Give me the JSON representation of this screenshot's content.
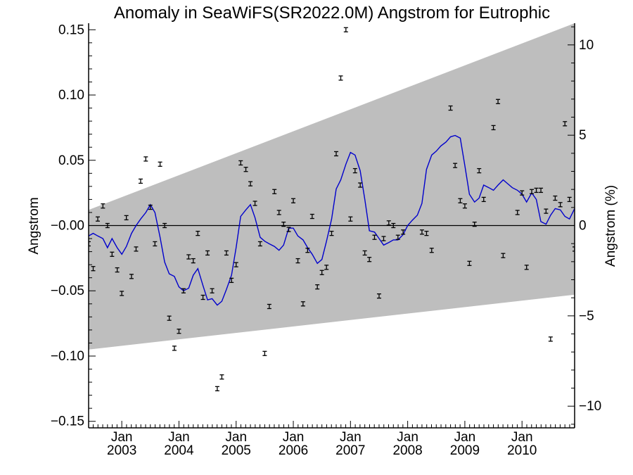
{
  "chart_data": {
    "type": "scatter",
    "title": "Anomaly in SeaWiFS(SR2022.0M) Angstrom for Eutrophic",
    "ylabel": "Angstrom",
    "y2label": "Angstrom (%)",
    "xlabel": "",
    "xlim": [
      2002.42,
      2010.92
    ],
    "ylim": [
      -0.155,
      0.155
    ],
    "y2lim": [
      -11.2,
      11.2
    ],
    "y_ticks": [
      -0.15,
      -0.1,
      -0.05,
      0.0,
      0.05,
      0.1,
      0.15
    ],
    "y_tick_labels": [
      "−0.15",
      "−0.10",
      "−0.05",
      "−0.00",
      "0.05",
      "0.10",
      "0.15"
    ],
    "y2_ticks": [
      -10,
      -5,
      0,
      5,
      10
    ],
    "y2_tick_labels": [
      "−10",
      "−5",
      "0",
      "5",
      "10"
    ],
    "x_ticks": [
      {
        "x": 2003.0,
        "label1": "Jan",
        "label2": "2003"
      },
      {
        "x": 2004.0,
        "label1": "Jan",
        "label2": "2004"
      },
      {
        "x": 2005.0,
        "label1": "Jan",
        "label2": "2005"
      },
      {
        "x": 2006.0,
        "label1": "Jan",
        "label2": "2006"
      },
      {
        "x": 2007.0,
        "label1": "Jan",
        "label2": "2007"
      },
      {
        "x": 2008.0,
        "label1": "Jan",
        "label2": "2008"
      },
      {
        "x": 2009.0,
        "label1": "Jan",
        "label2": "2009"
      },
      {
        "x": 2010.0,
        "label1": "Jan",
        "label2": "2010"
      }
    ],
    "band": {
      "left": [
        2002.42,
        -0.095,
        0.012
      ],
      "right": [
        2010.92,
        -0.053,
        0.155
      ],
      "color": "#bebebe"
    },
    "zero_line": 0.0,
    "monthly_points": {
      "x": [
        2002.42,
        2002.5,
        2002.58,
        2002.67,
        2002.75,
        2002.83,
        2002.92,
        2003.0,
        2003.08,
        2003.17,
        2003.25,
        2003.33,
        2003.42,
        2003.5,
        2003.58,
        2003.67,
        2003.75,
        2003.83,
        2003.92,
        2004.0,
        2004.08,
        2004.17,
        2004.25,
        2004.33,
        2004.42,
        2004.5,
        2004.58,
        2004.67,
        2004.75,
        2004.83,
        2004.92,
        2005.0,
        2005.08,
        2005.17,
        2005.25,
        2005.33,
        2005.42,
        2005.5,
        2005.58,
        2005.67,
        2005.75,
        2005.83,
        2005.92,
        2006.0,
        2006.08,
        2006.17,
        2006.25,
        2006.33,
        2006.42,
        2006.5,
        2006.58,
        2006.67,
        2006.75,
        2006.83,
        2006.92,
        2007.0,
        2007.08,
        2007.17,
        2007.25,
        2007.33,
        2007.42,
        2007.5,
        2007.58,
        2007.67,
        2007.75,
        2007.83,
        2007.92,
        2008.25,
        2008.33,
        2008.42,
        2008.75,
        2008.83,
        2008.92,
        2009.0,
        2009.08,
        2009.17,
        2009.25,
        2009.33,
        2009.5,
        2009.58,
        2009.67,
        2009.92,
        2010.0,
        2010.08,
        2010.17,
        2010.25,
        2010.33,
        2010.42,
        2010.5,
        2010.58,
        2010.67,
        2010.75,
        2010.83,
        2010.92
      ],
      "y": [
        -0.014,
        -0.033,
        0.005,
        0.015,
        0.0,
        -0.022,
        -0.034,
        -0.052,
        0.006,
        -0.039,
        -0.018,
        0.034,
        0.051,
        0.014,
        -0.014,
        0.047,
        0.0,
        -0.071,
        -0.094,
        -0.081,
        -0.05,
        -0.024,
        -0.027,
        -0.006,
        -0.055,
        -0.021,
        -0.05,
        -0.125,
        -0.116,
        -0.021,
        -0.042,
        -0.03,
        0.048,
        0.043,
        0.032,
        0.017,
        -0.014,
        -0.098,
        -0.062,
        0.026,
        0.01,
        0.001,
        -0.003,
        0.019,
        -0.027,
        -0.06,
        -0.019,
        0.007,
        -0.047,
        -0.036,
        -0.032,
        -0.006,
        0.055,
        0.113,
        0.15,
        0.005,
        0.042,
        0.031,
        -0.021,
        -0.026,
        -0.009,
        -0.054,
        -0.01,
        0.002,
        0.0,
        -0.009,
        -0.005,
        -0.005,
        -0.006,
        -0.019,
        0.09,
        0.046,
        0.019,
        0.015,
        -0.029,
        0.001,
        0.042,
        0.02,
        0.075,
        0.095,
        -0.023,
        0.01,
        0.025,
        -0.032,
        0.026,
        0.027,
        0.027,
        0.011,
        -0.087,
        0.021,
        0.016,
        0.078,
        0.02,
        -0.018
      ]
    },
    "smoothed_series": {
      "color": "#0000cc",
      "x": [
        2002.42,
        2002.5,
        2002.58,
        2002.67,
        2002.75,
        2002.83,
        2002.92,
        2003.0,
        2003.08,
        2003.17,
        2003.25,
        2003.33,
        2003.42,
        2003.5,
        2003.58,
        2003.67,
        2003.75,
        2003.83,
        2003.92,
        2004.0,
        2004.08,
        2004.17,
        2004.25,
        2004.33,
        2004.42,
        2004.5,
        2004.58,
        2004.67,
        2004.75,
        2004.83,
        2004.92,
        2005.0,
        2005.08,
        2005.17,
        2005.25,
        2005.33,
        2005.42,
        2005.5,
        2005.58,
        2005.67,
        2005.75,
        2005.83,
        2005.92,
        2006.0,
        2006.08,
        2006.17,
        2006.25,
        2006.33,
        2006.42,
        2006.5,
        2006.58,
        2006.67,
        2006.75,
        2006.83,
        2006.92,
        2007.0,
        2007.08,
        2007.17,
        2007.25,
        2007.33,
        2007.42,
        2007.5,
        2007.58,
        2007.67,
        2007.75,
        2007.83,
        2007.92,
        2008.0,
        2008.08,
        2008.17,
        2008.25,
        2008.33,
        2008.42,
        2008.5,
        2008.58,
        2008.67,
        2008.75,
        2008.83,
        2008.92,
        2009.0,
        2009.08,
        2009.17,
        2009.25,
        2009.33,
        2009.42,
        2009.5,
        2009.58,
        2009.67,
        2009.75,
        2009.83,
        2009.92,
        2010.0,
        2010.08,
        2010.17,
        2010.25,
        2010.33,
        2010.42,
        2010.5,
        2010.58,
        2010.67,
        2010.75,
        2010.83,
        2010.92
      ],
      "y": [
        -0.008,
        -0.006,
        -0.008,
        -0.01,
        -0.017,
        -0.01,
        -0.017,
        -0.022,
        -0.016,
        -0.006,
        0.0,
        0.005,
        0.01,
        0.016,
        0.01,
        -0.009,
        -0.028,
        -0.037,
        -0.039,
        -0.047,
        -0.05,
        -0.048,
        -0.038,
        -0.033,
        -0.046,
        -0.057,
        -0.056,
        -0.061,
        -0.058,
        -0.049,
        -0.038,
        -0.017,
        0.007,
        0.012,
        0.016,
        0.006,
        -0.009,
        -0.012,
        -0.014,
        -0.016,
        -0.019,
        -0.015,
        -0.002,
        -0.002,
        -0.008,
        -0.011,
        -0.017,
        -0.022,
        -0.029,
        -0.026,
        -0.012,
        0.005,
        0.028,
        0.035,
        0.047,
        0.056,
        0.054,
        0.042,
        0.02,
        -0.004,
        -0.005,
        -0.01,
        -0.015,
        -0.013,
        -0.011,
        -0.011,
        -0.007,
        0.0,
        0.004,
        0.008,
        0.017,
        0.043,
        0.054,
        0.057,
        0.061,
        0.064,
        0.068,
        0.069,
        0.067,
        0.046,
        0.024,
        0.018,
        0.021,
        0.031,
        0.029,
        0.027,
        0.031,
        0.035,
        0.032,
        0.029,
        0.027,
        0.024,
        0.018,
        0.025,
        0.02,
        0.003,
        0.001,
        0.008,
        0.013,
        0.012,
        0.007,
        0.005,
        0.013
      ]
    }
  }
}
